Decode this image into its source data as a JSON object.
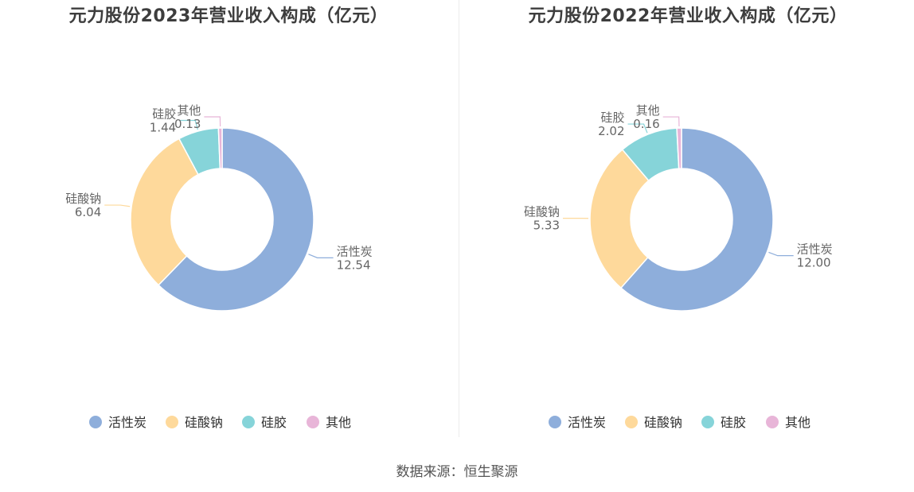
{
  "source": "数据来源：恒生聚源",
  "colors": [
    "#8eaedb",
    "#fed99b",
    "#86d4d9",
    "#e8b5d8"
  ],
  "chart_data": [
    {
      "type": "pie",
      "title": "元力股份2023年营业收入构成（亿元）",
      "categories": [
        "活性炭",
        "硅酸钠",
        "硅胶",
        "其他"
      ],
      "values": [
        12.54,
        6.04,
        1.44,
        0.13
      ],
      "value_labels": [
        "12.54",
        "6.04",
        "1.44",
        "0.13"
      ],
      "legend": "bottom"
    },
    {
      "type": "pie",
      "title": "元力股份2022年营业收入构成（亿元）",
      "categories": [
        "活性炭",
        "硅酸钠",
        "硅胶",
        "其他"
      ],
      "values": [
        12.0,
        5.33,
        2.02,
        0.16
      ],
      "value_labels": [
        "12.00",
        "5.33",
        "2.02",
        "0.16"
      ],
      "legend": "bottom"
    }
  ]
}
